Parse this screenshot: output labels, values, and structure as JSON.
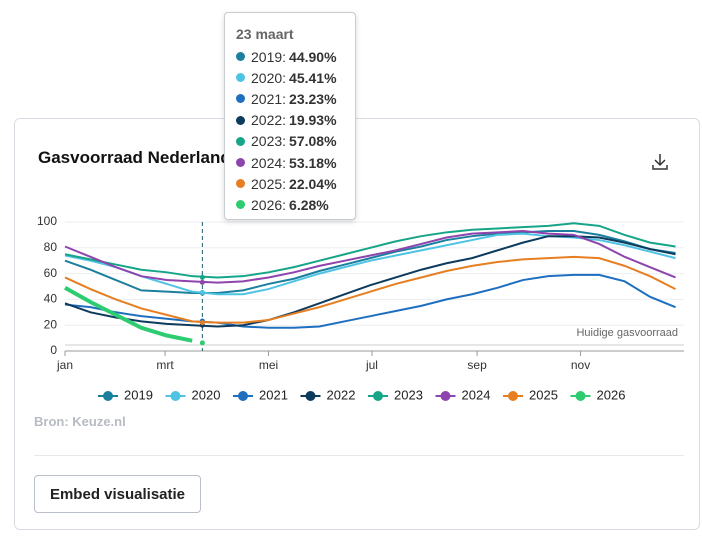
{
  "chart_data": {
    "type": "line",
    "title": "Gasvoorraad Nederland",
    "source": "Bron: Keuze.nl",
    "annotation": "Huidige gasvoorraad",
    "button": "Embed visualisatie",
    "x": [
      0,
      15,
      30,
      45,
      60,
      75,
      90,
      105,
      120,
      135,
      150,
      165,
      180,
      195,
      210,
      225,
      240,
      255,
      270,
      285,
      300,
      315,
      330,
      345,
      360
    ],
    "xlim": [
      0,
      365
    ],
    "xticks": [
      {
        "value": 0,
        "label": "jan"
      },
      {
        "value": 59,
        "label": "mrt"
      },
      {
        "value": 120,
        "label": "mei"
      },
      {
        "value": 181,
        "label": "jul"
      },
      {
        "value": 243,
        "label": "sep"
      },
      {
        "value": 304,
        "label": "nov"
      }
    ],
    "ylim": [
      0,
      100
    ],
    "yticks": [
      0,
      20,
      40,
      60,
      80,
      100
    ],
    "grid": true,
    "series": [
      {
        "name": "2019",
        "color": "#1b7f9e",
        "values": [
          70,
          63,
          55,
          47,
          46,
          45,
          45,
          47,
          52,
          56,
          62,
          67,
          72,
          77,
          81,
          86,
          89,
          91,
          92,
          93,
          93,
          90,
          85,
          79,
          76
        ]
      },
      {
        "name": "2020",
        "color": "#4fc3e3",
        "values": [
          74,
          70,
          65,
          58,
          52,
          46,
          44,
          44,
          48,
          54,
          60,
          65,
          70,
          74,
          78,
          82,
          86,
          90,
          91,
          89,
          88,
          86,
          82,
          77,
          72
        ]
      },
      {
        "name": "2021",
        "color": "#1f6fc1",
        "values": [
          36,
          34,
          30,
          27,
          25,
          23,
          22,
          19,
          18,
          18,
          19,
          23,
          27,
          31,
          35,
          40,
          44,
          49,
          55,
          58,
          59,
          59,
          54,
          42,
          34
        ]
      },
      {
        "name": "2022",
        "color": "#0d3b5e",
        "values": [
          37,
          30,
          26,
          23,
          21,
          20,
          19,
          20,
          24,
          30,
          37,
          44,
          51,
          57,
          63,
          68,
          72,
          78,
          84,
          89,
          89,
          88,
          84,
          79,
          75
        ]
      },
      {
        "name": "2023",
        "color": "#17a589",
        "values": [
          75,
          71,
          67,
          63,
          61,
          58,
          57,
          58,
          61,
          65,
          70,
          75,
          80,
          85,
          89,
          92,
          94,
          95,
          96,
          97,
          99,
          97,
          90,
          84,
          81
        ]
      },
      {
        "name": "2024",
        "color": "#8e44ad",
        "values": [
          81,
          73,
          65,
          58,
          55,
          54,
          53,
          54,
          57,
          61,
          66,
          70,
          74,
          78,
          83,
          88,
          91,
          92,
          93,
          91,
          90,
          83,
          73,
          65,
          57
        ]
      },
      {
        "name": "2025",
        "color": "#e67e22",
        "values": [
          57,
          48,
          40,
          33,
          28,
          23,
          22,
          22,
          24,
          29,
          34,
          40,
          46,
          52,
          57,
          62,
          66,
          69,
          71,
          72,
          73,
          72,
          66,
          58,
          48
        ]
      },
      {
        "name": "2026",
        "color": "#2ecc71",
        "values": [
          49,
          38,
          28,
          18,
          12,
          8,
          null,
          null,
          null,
          null,
          null,
          null,
          null,
          null,
          null,
          null,
          null,
          null,
          null,
          null,
          null,
          null,
          null,
          null,
          null
        ]
      }
    ],
    "tooltip": {
      "title": "23 maart",
      "x": 81,
      "values": [
        44.9,
        45.41,
        23.23,
        19.93,
        57.08,
        53.18,
        22.04,
        6.28
      ],
      "value_labels": [
        "44.90%",
        "45.41%",
        "23.23%",
        "19.93%",
        "57.08%",
        "53.18%",
        "22.04%",
        "6.28%"
      ]
    }
  }
}
